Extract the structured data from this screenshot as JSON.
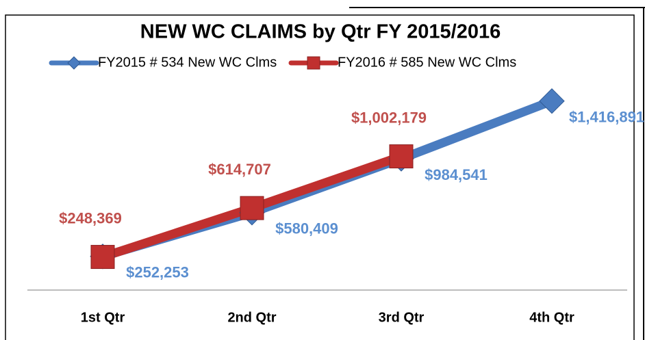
{
  "chart_data": {
    "type": "line",
    "title": "NEW WC CLAIMS by Qtr FY 2015/2016",
    "categories": [
      "1st Qtr",
      "2nd Qtr",
      "3rd Qtr",
      "4th Qtr"
    ],
    "series": [
      {
        "name": "FY2015 # 534 New WC Clms",
        "color": "#4a7cc0",
        "label_color": "#5b8fd0",
        "marker": "diamond",
        "values": [
          252253,
          580409,
          984541,
          1416891
        ],
        "value_labels": [
          "$252,253",
          "$580,409",
          "$984,541",
          "$1,416,891"
        ]
      },
      {
        "name": "FY2016 # 585 New WC Clms",
        "color": "#c0302f",
        "label_color": "#c0504d",
        "marker": "square",
        "values": [
          248369,
          614707,
          1002179,
          null
        ],
        "value_labels": [
          "$248,369",
          "$614,707",
          "$1,002,179",
          null
        ]
      }
    ],
    "ylim": [
      0,
      1600000
    ],
    "legend": "top"
  }
}
